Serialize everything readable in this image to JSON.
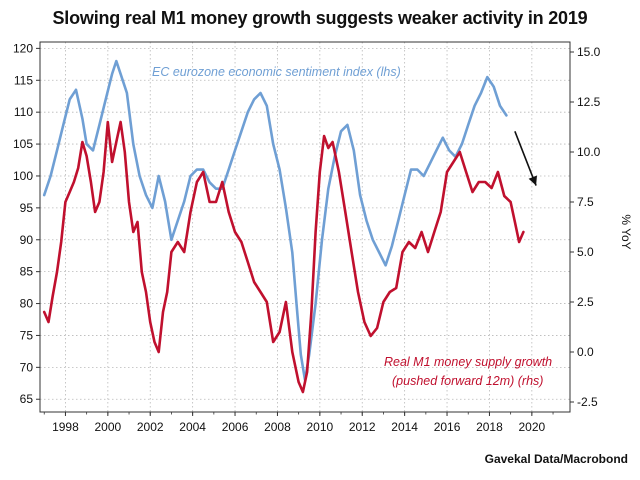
{
  "title": "Slowing real M1 money growth suggests weaker activity in 2019",
  "source": "Gavekal Data/Macrobond",
  "chart_data": {
    "type": "line",
    "left_axis": {
      "ylim": [
        63,
        121
      ],
      "ticks": [
        65,
        70,
        75,
        80,
        85,
        90,
        95,
        100,
        105,
        110,
        115,
        120
      ]
    },
    "right_axis": {
      "ylim": [
        -3.0,
        15.5
      ],
      "ticks": [
        -2.5,
        0.0,
        2.5,
        5.0,
        7.5,
        10.0,
        12.5,
        15.0
      ],
      "tick_labels": [
        "-2.5",
        "0.0",
        "2.5",
        "5.0",
        "7.5",
        "10.0",
        "12.5",
        "15.0"
      ],
      "label": "% YoY"
    },
    "x_axis": {
      "xlim": [
        1996.8,
        2021.8
      ],
      "ticks": [
        1998,
        2000,
        2002,
        2004,
        2006,
        2008,
        2010,
        2012,
        2014,
        2016,
        2018,
        2020
      ]
    },
    "grid": true,
    "arrow": {
      "from": [
        2019.2,
        107
      ],
      "to": [
        2020.2,
        98.5
      ]
    },
    "series": [
      {
        "name": "EC eurozone economic sentiment index (lhs)",
        "axis": "left",
        "color": "#6f9fd4",
        "x": [
          1997.0,
          1997.3,
          1997.6,
          1997.9,
          1998.2,
          1998.5,
          1998.8,
          1999.0,
          1999.3,
          1999.6,
          1999.9,
          2000.2,
          2000.4,
          2000.6,
          2000.9,
          2001.2,
          2001.5,
          2001.8,
          2002.1,
          2002.4,
          2002.7,
          2003.0,
          2003.3,
          2003.6,
          2003.9,
          2004.2,
          2004.5,
          2004.8,
          2005.1,
          2005.4,
          2005.7,
          2006.0,
          2006.3,
          2006.6,
          2006.9,
          2007.2,
          2007.5,
          2007.8,
          2008.1,
          2008.4,
          2008.7,
          2008.9,
          2009.1,
          2009.3,
          2009.5,
          2009.8,
          2010.1,
          2010.4,
          2010.7,
          2011.0,
          2011.3,
          2011.6,
          2011.9,
          2012.2,
          2012.5,
          2012.8,
          2013.1,
          2013.4,
          2013.7,
          2014.0,
          2014.3,
          2014.6,
          2014.9,
          2015.2,
          2015.5,
          2015.8,
          2016.1,
          2016.4,
          2016.7,
          2017.0,
          2017.3,
          2017.6,
          2017.9,
          2018.2,
          2018.5,
          2018.8
        ],
        "y": [
          97,
          100,
          104,
          108,
          112,
          113.5,
          109,
          105,
          104,
          108,
          112,
          116,
          118,
          116,
          113,
          105,
          100,
          97,
          95,
          100,
          96,
          90,
          93,
          96,
          100,
          101,
          101,
          99,
          98,
          98,
          101,
          104,
          107,
          110,
          112,
          113,
          111,
          105,
          101,
          95,
          88,
          80,
          72,
          68,
          72,
          80,
          90,
          98,
          103,
          107,
          108,
          104,
          97,
          93,
          90,
          88,
          86,
          89,
          93,
          97,
          101,
          101,
          100,
          102,
          104,
          106,
          104,
          103,
          105,
          108,
          111,
          113,
          115.5,
          114,
          111,
          109.5
        ]
      },
      {
        "name": "Real M1 money supply growth (pushed forward 12m) (rhs)",
        "axis": "right",
        "color": "#c0102e",
        "x": [
          1997.0,
          1997.2,
          1997.4,
          1997.6,
          1997.8,
          1998.0,
          1998.2,
          1998.4,
          1998.6,
          1998.8,
          1999.0,
          1999.2,
          1999.4,
          1999.6,
          1999.8,
          2000.0,
          2000.2,
          2000.4,
          2000.6,
          2000.8,
          2001.0,
          2001.2,
          2001.4,
          2001.6,
          2001.8,
          2002.0,
          2002.2,
          2002.4,
          2002.6,
          2002.8,
          2003.0,
          2003.3,
          2003.6,
          2003.9,
          2004.2,
          2004.5,
          2004.8,
          2005.1,
          2005.4,
          2005.7,
          2006.0,
          2006.3,
          2006.6,
          2006.9,
          2007.2,
          2007.5,
          2007.8,
          2008.1,
          2008.4,
          2008.7,
          2009.0,
          2009.2,
          2009.4,
          2009.6,
          2009.8,
          2010.0,
          2010.2,
          2010.4,
          2010.6,
          2010.9,
          2011.2,
          2011.5,
          2011.8,
          2012.1,
          2012.4,
          2012.7,
          2013.0,
          2013.3,
          2013.6,
          2013.9,
          2014.2,
          2014.5,
          2014.8,
          2015.1,
          2015.4,
          2015.7,
          2016.0,
          2016.3,
          2016.6,
          2016.9,
          2017.2,
          2017.5,
          2017.8,
          2018.1,
          2018.4,
          2018.7,
          2019.0,
          2019.2,
          2019.4,
          2019.6
        ],
        "y": [
          2.0,
          1.5,
          2.8,
          4.0,
          5.5,
          7.5,
          8.0,
          8.5,
          9.2,
          10.5,
          9.8,
          8.5,
          7.0,
          7.5,
          9.0,
          11.5,
          9.5,
          10.5,
          11.5,
          10.0,
          7.5,
          6.0,
          6.5,
          4.0,
          3.0,
          1.5,
          0.5,
          0.0,
          2.0,
          3.0,
          5.0,
          5.5,
          5.0,
          7.0,
          8.5,
          9.0,
          7.5,
          7.5,
          8.5,
          7.0,
          6.0,
          5.5,
          4.5,
          3.5,
          3.0,
          2.5,
          0.5,
          1.0,
          2.5,
          0.0,
          -1.5,
          -2.0,
          -1.0,
          2.0,
          6.0,
          9.0,
          10.8,
          10.2,
          10.5,
          9.0,
          7.0,
          5.0,
          3.0,
          1.5,
          0.8,
          1.2,
          2.5,
          3.0,
          3.2,
          5.0,
          5.5,
          5.2,
          6.0,
          5.0,
          6.0,
          7.0,
          9.0,
          9.5,
          10.0,
          9.0,
          8.0,
          8.5,
          8.5,
          8.2,
          9.0,
          7.8,
          7.5,
          6.5,
          5.5,
          6.0
        ]
      }
    ]
  },
  "annotations": {
    "blue_label": "EC eurozone economic sentiment index (lhs)",
    "red_label_line1": "Real M1 money supply growth",
    "red_label_line2": "(pushed forward 12m) (rhs)"
  }
}
